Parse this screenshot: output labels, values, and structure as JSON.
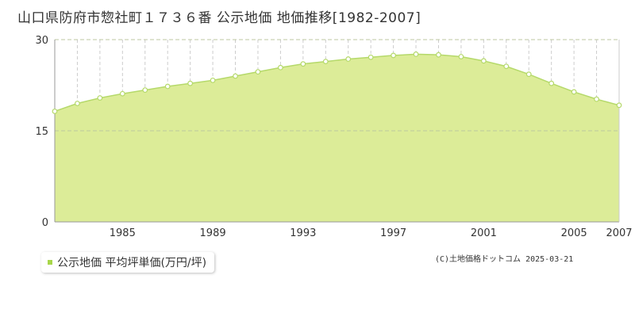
{
  "title": "山口県防府市惣社町１７３６番 公示地価 地価推移[1982-2007]",
  "legend": {
    "label": "公示地価 平均坪単価(万円/坪)",
    "color": "#a8d64a"
  },
  "credit": "(C)土地価格ドットコム 2025-03-21",
  "colors": {
    "area_fill": "#dcec98",
    "line": "#b5d96a",
    "marker_fill": "#ffffff",
    "grid_h": "#bcc7a0",
    "grid_v": "#cccccc",
    "axis": "#999999"
  },
  "chart_data": {
    "type": "area",
    "title": "山口県防府市惣社町１７３６番 公示地価 地価推移[1982-2007]",
    "xlabel": "",
    "ylabel": "",
    "x": [
      1982,
      1983,
      1984,
      1985,
      1986,
      1987,
      1988,
      1989,
      1990,
      1991,
      1992,
      1993,
      1994,
      1995,
      1996,
      1997,
      1998,
      1999,
      2000,
      2001,
      2002,
      2003,
      2004,
      2005,
      2006,
      2007
    ],
    "series": [
      {
        "name": "公示地価 平均坪単価(万円/坪)",
        "values": [
          18.2,
          19.5,
          20.4,
          21.1,
          21.7,
          22.3,
          22.8,
          23.3,
          24.0,
          24.7,
          25.4,
          26.0,
          26.4,
          26.8,
          27.1,
          27.4,
          27.6,
          27.5,
          27.2,
          26.5,
          25.6,
          24.3,
          22.8,
          21.4,
          20.2,
          19.2
        ]
      }
    ],
    "xticks": [
      "1985",
      "1989",
      "1993",
      "1997",
      "2001",
      "2005",
      "2007"
    ],
    "xtick_values": [
      1985,
      1989,
      1993,
      1997,
      2001,
      2005,
      2007
    ],
    "yticks": [
      "0",
      "15",
      "30"
    ],
    "ytick_values": [
      0,
      15,
      30
    ],
    "xlim": [
      1982,
      2007
    ],
    "ylim": [
      0,
      30
    ],
    "grid": true,
    "legend_position": "bottom-left"
  }
}
